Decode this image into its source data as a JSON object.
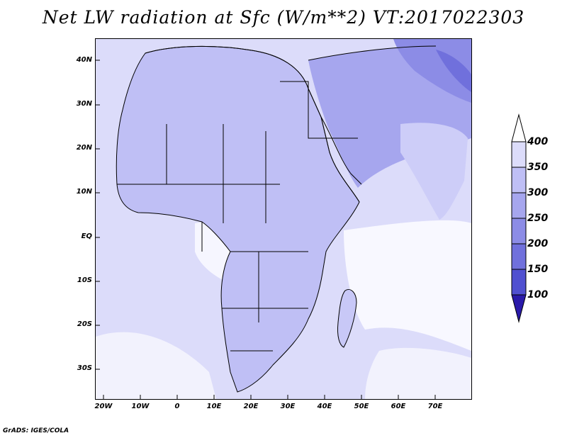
{
  "title": "Net LW radiation at Sfc (W/m**2) VT:2017022303",
  "credit": "GrADS: IGES/COLA",
  "map": {
    "lat_labels": [
      "40N",
      "30N",
      "20N",
      "10N",
      "EQ",
      "10S",
      "20S",
      "30S"
    ],
    "lon_labels": [
      "20W",
      "10W",
      "0",
      "10E",
      "20E",
      "30E",
      "40E",
      "50E",
      "60E",
      "70E"
    ],
    "lat_range": [
      -37,
      45
    ],
    "lon_range": [
      -22,
      80
    ]
  },
  "colorbar": {
    "labels": [
      "400",
      "350",
      "300",
      "250",
      "200",
      "150",
      "100"
    ],
    "colors": [
      "#ffffff",
      "#dcdcfa",
      "#bfbff5",
      "#a6a6ee",
      "#8c8ce6",
      "#7070dc",
      "#5050d0",
      "#2a1aaa"
    ]
  }
}
